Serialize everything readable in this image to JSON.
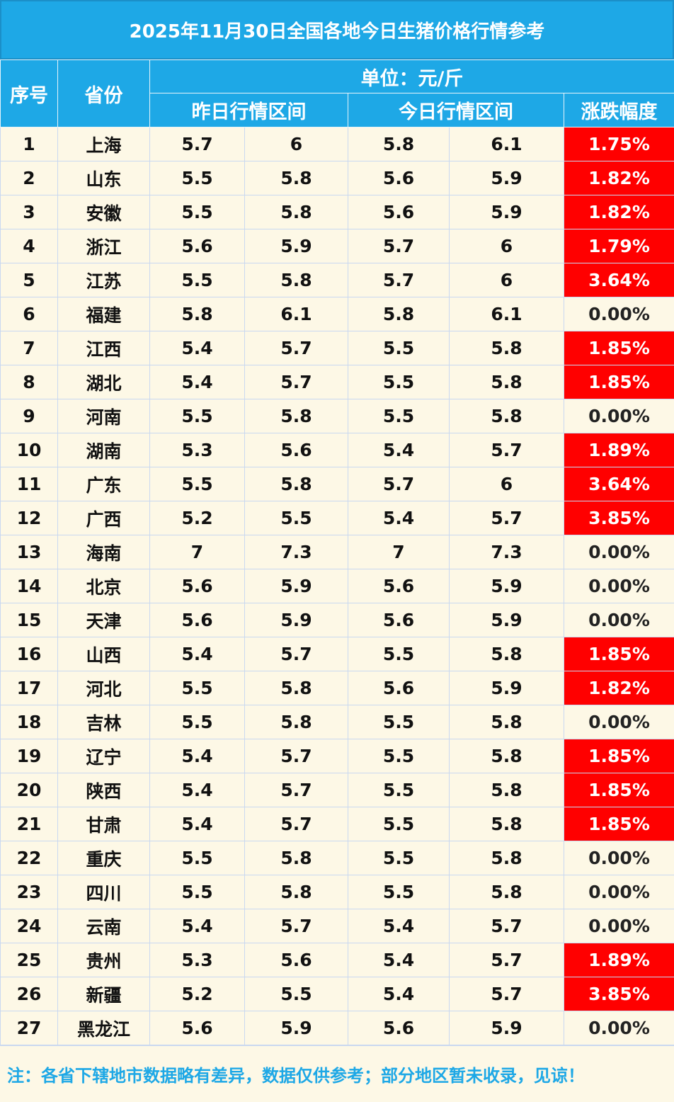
{
  "title": "2025年11月30日全国各地今日生猪价格行情参考",
  "headers": {
    "index": "序号",
    "province": "省份",
    "unit": "单位：元/斤",
    "yesterday": "昨日行情区间",
    "today": "今日行情区间",
    "change": "涨跌幅度"
  },
  "colors": {
    "header_bg": "#1ea8e6",
    "up_bg": "#ff0000",
    "body_bg": "#fdf8e6"
  },
  "rows": [
    {
      "no": "1",
      "province": "上海",
      "y_low": "5.7",
      "y_high": "6",
      "t_low": "5.8",
      "t_high": "6.1",
      "change": "1.75%",
      "up": true
    },
    {
      "no": "2",
      "province": "山东",
      "y_low": "5.5",
      "y_high": "5.8",
      "t_low": "5.6",
      "t_high": "5.9",
      "change": "1.82%",
      "up": true
    },
    {
      "no": "3",
      "province": "安徽",
      "y_low": "5.5",
      "y_high": "5.8",
      "t_low": "5.6",
      "t_high": "5.9",
      "change": "1.82%",
      "up": true
    },
    {
      "no": "4",
      "province": "浙江",
      "y_low": "5.6",
      "y_high": "5.9",
      "t_low": "5.7",
      "t_high": "6",
      "change": "1.79%",
      "up": true
    },
    {
      "no": "5",
      "province": "江苏",
      "y_low": "5.5",
      "y_high": "5.8",
      "t_low": "5.7",
      "t_high": "6",
      "change": "3.64%",
      "up": true
    },
    {
      "no": "6",
      "province": "福建",
      "y_low": "5.8",
      "y_high": "6.1",
      "t_low": "5.8",
      "t_high": "6.1",
      "change": "0.00%",
      "up": false
    },
    {
      "no": "7",
      "province": "江西",
      "y_low": "5.4",
      "y_high": "5.7",
      "t_low": "5.5",
      "t_high": "5.8",
      "change": "1.85%",
      "up": true
    },
    {
      "no": "8",
      "province": "湖北",
      "y_low": "5.4",
      "y_high": "5.7",
      "t_low": "5.5",
      "t_high": "5.8",
      "change": "1.85%",
      "up": true
    },
    {
      "no": "9",
      "province": "河南",
      "y_low": "5.5",
      "y_high": "5.8",
      "t_low": "5.5",
      "t_high": "5.8",
      "change": "0.00%",
      "up": false
    },
    {
      "no": "10",
      "province": "湖南",
      "y_low": "5.3",
      "y_high": "5.6",
      "t_low": "5.4",
      "t_high": "5.7",
      "change": "1.89%",
      "up": true
    },
    {
      "no": "11",
      "province": "广东",
      "y_low": "5.5",
      "y_high": "5.8",
      "t_low": "5.7",
      "t_high": "6",
      "change": "3.64%",
      "up": true
    },
    {
      "no": "12",
      "province": "广西",
      "y_low": "5.2",
      "y_high": "5.5",
      "t_low": "5.4",
      "t_high": "5.7",
      "change": "3.85%",
      "up": true
    },
    {
      "no": "13",
      "province": "海南",
      "y_low": "7",
      "y_high": "7.3",
      "t_low": "7",
      "t_high": "7.3",
      "change": "0.00%",
      "up": false
    },
    {
      "no": "14",
      "province": "北京",
      "y_low": "5.6",
      "y_high": "5.9",
      "t_low": "5.6",
      "t_high": "5.9",
      "change": "0.00%",
      "up": false
    },
    {
      "no": "15",
      "province": "天津",
      "y_low": "5.6",
      "y_high": "5.9",
      "t_low": "5.6",
      "t_high": "5.9",
      "change": "0.00%",
      "up": false
    },
    {
      "no": "16",
      "province": "山西",
      "y_low": "5.4",
      "y_high": "5.7",
      "t_low": "5.5",
      "t_high": "5.8",
      "change": "1.85%",
      "up": true
    },
    {
      "no": "17",
      "province": "河北",
      "y_low": "5.5",
      "y_high": "5.8",
      "t_low": "5.6",
      "t_high": "5.9",
      "change": "1.82%",
      "up": true
    },
    {
      "no": "18",
      "province": "吉林",
      "y_low": "5.5",
      "y_high": "5.8",
      "t_low": "5.5",
      "t_high": "5.8",
      "change": "0.00%",
      "up": false
    },
    {
      "no": "19",
      "province": "辽宁",
      "y_low": "5.4",
      "y_high": "5.7",
      "t_low": "5.5",
      "t_high": "5.8",
      "change": "1.85%",
      "up": true
    },
    {
      "no": "20",
      "province": "陕西",
      "y_low": "5.4",
      "y_high": "5.7",
      "t_low": "5.5",
      "t_high": "5.8",
      "change": "1.85%",
      "up": true
    },
    {
      "no": "21",
      "province": "甘肃",
      "y_low": "5.4",
      "y_high": "5.7",
      "t_low": "5.5",
      "t_high": "5.8",
      "change": "1.85%",
      "up": true
    },
    {
      "no": "22",
      "province": "重庆",
      "y_low": "5.5",
      "y_high": "5.8",
      "t_low": "5.5",
      "t_high": "5.8",
      "change": "0.00%",
      "up": false
    },
    {
      "no": "23",
      "province": "四川",
      "y_low": "5.5",
      "y_high": "5.8",
      "t_low": "5.5",
      "t_high": "5.8",
      "change": "0.00%",
      "up": false
    },
    {
      "no": "24",
      "province": "云南",
      "y_low": "5.4",
      "y_high": "5.7",
      "t_low": "5.4",
      "t_high": "5.7",
      "change": "0.00%",
      "up": false
    },
    {
      "no": "25",
      "province": "贵州",
      "y_low": "5.3",
      "y_high": "5.6",
      "t_low": "5.4",
      "t_high": "5.7",
      "change": "1.89%",
      "up": true
    },
    {
      "no": "26",
      "province": "新疆",
      "y_low": "5.2",
      "y_high": "5.5",
      "t_low": "5.4",
      "t_high": "5.7",
      "change": "3.85%",
      "up": true
    },
    {
      "no": "27",
      "province": "黑龙江",
      "y_low": "5.6",
      "y_high": "5.9",
      "t_low": "5.6",
      "t_high": "5.9",
      "change": "0.00%",
      "up": false
    }
  ],
  "note": "注：各省下辖地市数据略有差异，数据仅供参考；部分地区暂未收录，见谅！"
}
